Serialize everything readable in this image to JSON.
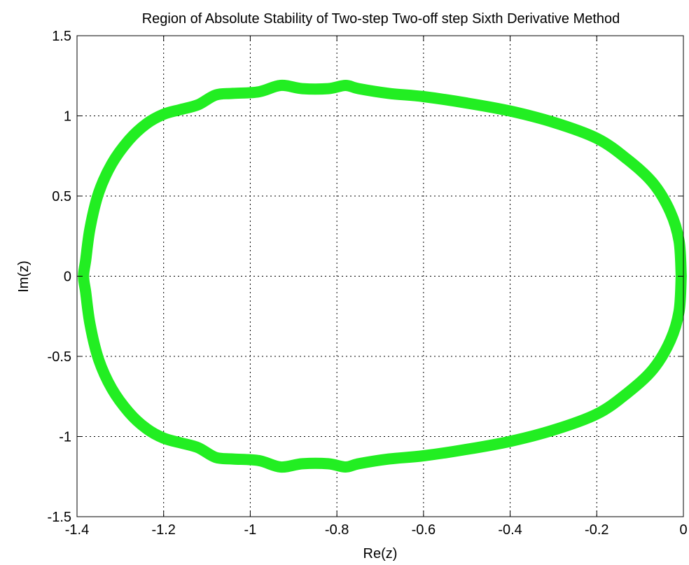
{
  "chart_data": {
    "type": "line",
    "title": "Region of Absolute Stability of Two-step Two-off step Sixth Derivative Method",
    "xlabel": "Re(z)",
    "ylabel": "Im(z)",
    "xlim": [
      -1.4,
      0
    ],
    "ylim": [
      -1.5,
      1.5
    ],
    "x_ticks": [
      -1.4,
      -1.2,
      -1,
      -0.8,
      -0.6,
      -0.4,
      -0.2,
      0
    ],
    "x_tick_labels": [
      "-1.4",
      "-1.2",
      "-1",
      "-0.8",
      "-0.6",
      "-0.4",
      "-0.2",
      "0"
    ],
    "y_ticks": [
      -1.5,
      -1,
      -0.5,
      0,
      0.5,
      1,
      1.5
    ],
    "y_tick_labels": [
      "-1.5",
      "-1",
      "-0.5",
      "0",
      "0.5",
      "1",
      "1.5"
    ],
    "grid": true,
    "line_color": "#22ee22",
    "series": [
      {
        "x": [
          -0.005,
          -0.01,
          -0.03,
          -0.07,
          -0.13,
          -0.2,
          -0.3,
          -0.4,
          -0.5,
          -0.6,
          -0.68,
          -0.75,
          -0.78,
          -0.82,
          -0.88,
          -0.93,
          -0.98,
          -1.04,
          -1.08,
          -1.12,
          -1.16,
          -1.2,
          -1.24,
          -1.28,
          -1.32,
          -1.35,
          -1.37,
          -1.38,
          -1.385,
          -1.38,
          -1.37,
          -1.35,
          -1.32,
          -1.28,
          -1.24,
          -1.2,
          -1.16,
          -1.12,
          -1.08,
          -1.04,
          -0.98,
          -0.93,
          -0.88,
          -0.82,
          -0.78,
          -0.75,
          -0.68,
          -0.6,
          -0.5,
          -0.4,
          -0.3,
          -0.2,
          -0.13,
          -0.07,
          -0.03,
          -0.01,
          -0.005
        ],
        "y": [
          0.0,
          0.22,
          0.4,
          0.58,
          0.73,
          0.86,
          0.96,
          1.03,
          1.08,
          1.12,
          1.14,
          1.17,
          1.19,
          1.17,
          1.17,
          1.19,
          1.15,
          1.14,
          1.13,
          1.07,
          1.04,
          1.01,
          0.95,
          0.85,
          0.7,
          0.52,
          0.3,
          0.1,
          0.0,
          -0.1,
          -0.3,
          -0.52,
          -0.7,
          -0.85,
          -0.95,
          -1.01,
          -1.04,
          -1.07,
          -1.13,
          -1.14,
          -1.15,
          -1.19,
          -1.17,
          -1.17,
          -1.19,
          -1.17,
          -1.14,
          -1.12,
          -1.08,
          -1.03,
          -0.96,
          -0.86,
          -0.73,
          -0.58,
          -0.4,
          -0.22,
          0.0
        ]
      }
    ]
  }
}
